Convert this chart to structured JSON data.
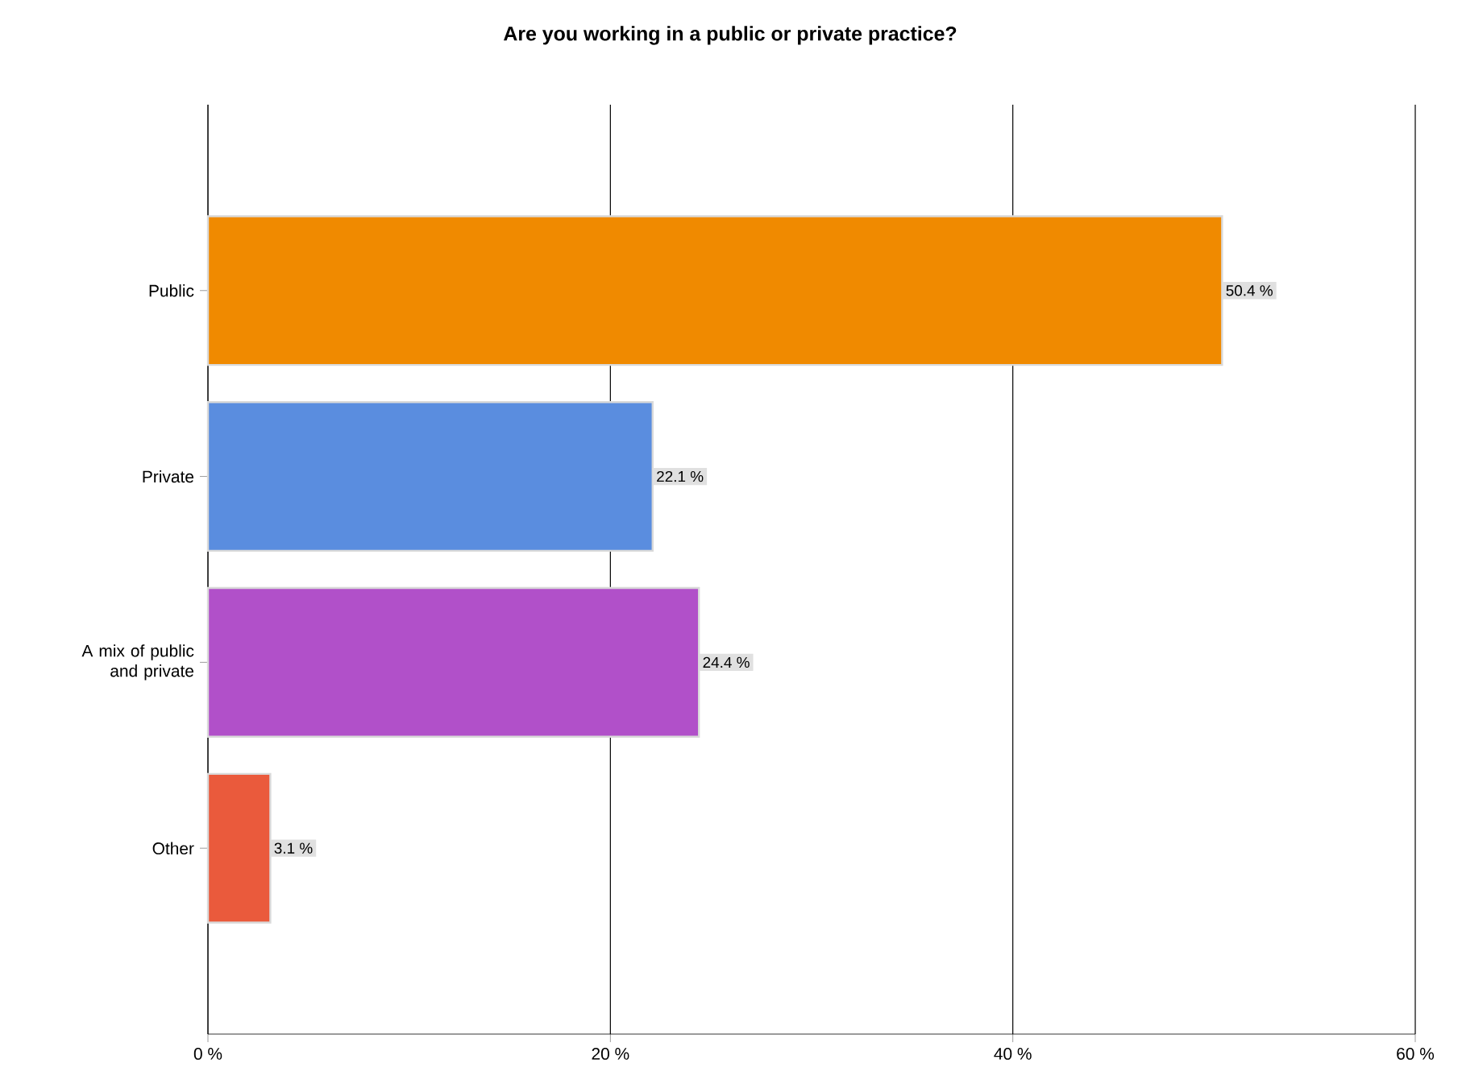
{
  "chart_data": {
    "type": "bar",
    "orientation": "horizontal",
    "title": "Are you working in a public or private practice?",
    "categories": [
      "Public",
      "Private",
      "A mix of public and private",
      "Other"
    ],
    "values": [
      50.4,
      22.1,
      24.4,
      3.1
    ],
    "colors": [
      "#f08a00",
      "#5a8ddf",
      "#b150c9",
      "#ea5a3c"
    ],
    "value_labels": [
      "50.4 %",
      "22.1 %",
      "24.4 %",
      "3.1 %"
    ],
    "xlim": [
      0,
      60
    ],
    "xticks": [
      {
        "value": 0,
        "label": "0 %"
      },
      {
        "value": 20,
        "label": "20 %"
      },
      {
        "value": 40,
        "label": "40 %"
      },
      {
        "value": 60,
        "label": "60 %"
      }
    ],
    "grid": "x"
  }
}
